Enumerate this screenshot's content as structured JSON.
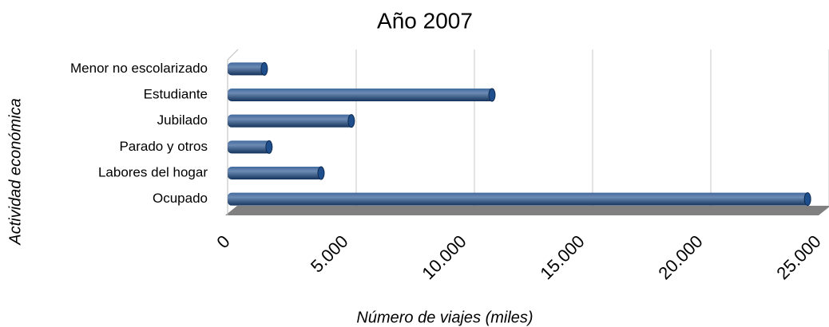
{
  "chart_data": {
    "type": "bar",
    "orientation": "horizontal",
    "title": "Año 2007",
    "x_label": "Número de viajes (miles)",
    "y_label": "Actividad económica",
    "categories": [
      "Menor no escolarizado",
      "Estudiante",
      "Jubilado",
      "Parado y  otros",
      "Labores del hogar",
      "Ocupado"
    ],
    "values": [
      1620,
      11250,
      5300,
      1820,
      4020,
      24600
    ],
    "color": "#1f4e8c",
    "xlim": [
      0,
      25000
    ],
    "xticks": [
      0,
      {
        "value": 5000,
        "label": "5.000"
      },
      {
        "value": 10000,
        "label": "10.000"
      },
      {
        "value": 15000,
        "label": "15.000"
      },
      {
        "value": 20000,
        "label": "20.000"
      },
      {
        "value": 25000,
        "label": "25.000"
      }
    ],
    "grid": true
  }
}
